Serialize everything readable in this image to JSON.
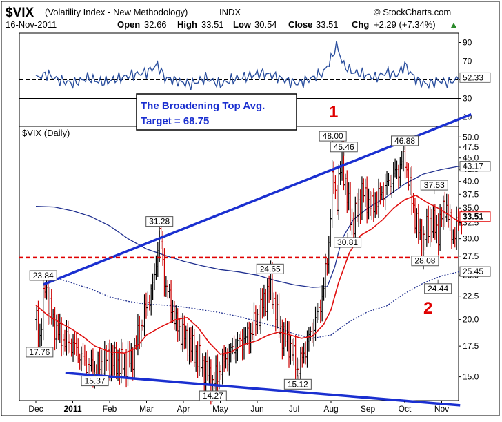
{
  "header": {
    "symbol": "$VIX",
    "description": "(Volatility Index - New Methodology)",
    "exchange": "INDX",
    "watermark": "© StockCharts.com",
    "date": "16-Nov-2011",
    "open_label": "Open",
    "open": "32.66",
    "high_label": "High",
    "high": "33.51",
    "low_label": "Low",
    "low": "30.54",
    "close_label": "Close",
    "close": "33.51",
    "chg_label": "Chg",
    "chg": "+2.29 (+7.34%)"
  },
  "rsi": {
    "ticks": [
      90,
      70,
      50,
      30,
      10
    ],
    "overbought": 70,
    "oversold": 30,
    "last_label": "52.33"
  },
  "price_panel": {
    "label": "$VIX (Daily)",
    "ticks": [
      "50.0",
      "47.5",
      "45.0",
      "42.5",
      "40.0",
      "37.5",
      "35.0",
      "32.5",
      "30.0",
      "27.5",
      "25.0",
      "22.5",
      "20.0",
      "17.5",
      "15.0"
    ],
    "upper_band_label": "43.17",
    "close_label": "33.51",
    "lower_band_label": "25.45"
  },
  "x_axis": {
    "months": [
      {
        "label": "Dec",
        "bold": false
      },
      {
        "label": "2011",
        "bold": true
      },
      {
        "label": "Feb",
        "bold": false
      },
      {
        "label": "Mar",
        "bold": false
      },
      {
        "label": "Apr",
        "bold": false
      },
      {
        "label": "May",
        "bold": false
      },
      {
        "label": "Jun",
        "bold": false
      },
      {
        "label": "Jul",
        "bold": false
      },
      {
        "label": "Aug",
        "bold": false
      },
      {
        "label": "Sep",
        "bold": false
      },
      {
        "label": "Oct",
        "bold": false
      },
      {
        "label": "Nov",
        "bold": false
      }
    ]
  },
  "annotations": {
    "target_box_line1": "The Broadening Top Avg.",
    "target_box_line2": "Target = 68.75",
    "wave_1": "1",
    "wave_2": "2",
    "target_level": 27.3
  },
  "chart_data": {
    "type": "ohlc",
    "scale": "log",
    "ylim": [
      13.5,
      52
    ],
    "rsi_ylim": [
      0,
      100
    ],
    "price_points": [
      {
        "m": 0.0,
        "v": 20
      },
      {
        "m": 0.1,
        "v": 17.8
      },
      {
        "m": 0.25,
        "v": 23.8
      },
      {
        "m": 0.45,
        "v": 19.8
      },
      {
        "m": 0.7,
        "v": 18.2
      },
      {
        "m": 1.0,
        "v": 17.6
      },
      {
        "m": 1.3,
        "v": 16.2
      },
      {
        "m": 1.6,
        "v": 15.4
      },
      {
        "m": 1.9,
        "v": 16.5
      },
      {
        "m": 2.3,
        "v": 16.0
      },
      {
        "m": 2.6,
        "v": 16.3
      },
      {
        "m": 2.9,
        "v": 20.0
      },
      {
        "m": 3.2,
        "v": 24.0
      },
      {
        "m": 3.35,
        "v": 31.0
      },
      {
        "m": 3.5,
        "v": 24.0
      },
      {
        "m": 3.8,
        "v": 19.5
      },
      {
        "m": 4.2,
        "v": 17.5
      },
      {
        "m": 4.5,
        "v": 16.0
      },
      {
        "m": 4.8,
        "v": 14.5
      },
      {
        "m": 5.1,
        "v": 16.2
      },
      {
        "m": 5.4,
        "v": 17.5
      },
      {
        "m": 5.8,
        "v": 18.5
      },
      {
        "m": 6.2,
        "v": 22.0
      },
      {
        "m": 6.35,
        "v": 24.0
      },
      {
        "m": 6.6,
        "v": 19.0
      },
      {
        "m": 6.9,
        "v": 17.5
      },
      {
        "m": 7.1,
        "v": 15.5
      },
      {
        "m": 7.3,
        "v": 17.2
      },
      {
        "m": 7.6,
        "v": 20.0
      },
      {
        "m": 7.8,
        "v": 23.0
      },
      {
        "m": 7.95,
        "v": 30.0
      },
      {
        "m": 8.05,
        "v": 42.0
      },
      {
        "m": 8.15,
        "v": 36.0
      },
      {
        "m": 8.3,
        "v": 45.0
      },
      {
        "m": 8.45,
        "v": 36.0
      },
      {
        "m": 8.6,
        "v": 32.0
      },
      {
        "m": 8.85,
        "v": 38.0
      },
      {
        "m": 9.1,
        "v": 35.0
      },
      {
        "m": 9.4,
        "v": 38.0
      },
      {
        "m": 9.7,
        "v": 41.0
      },
      {
        "m": 10.0,
        "v": 45.0
      },
      {
        "m": 10.2,
        "v": 36.0
      },
      {
        "m": 10.45,
        "v": 29.0
      },
      {
        "m": 10.7,
        "v": 33.0
      },
      {
        "m": 10.9,
        "v": 31.0
      },
      {
        "m": 11.1,
        "v": 36.0
      },
      {
        "m": 11.3,
        "v": 30.0
      },
      {
        "m": 11.5,
        "v": 33.5
      }
    ],
    "ma20": [
      {
        "m": 0.0,
        "v": 21.5
      },
      {
        "m": 0.3,
        "v": 20.5
      },
      {
        "m": 0.6,
        "v": 19.8
      },
      {
        "m": 1.0,
        "v": 19.0
      },
      {
        "m": 1.3,
        "v": 18.3
      },
      {
        "m": 1.6,
        "v": 17.5
      },
      {
        "m": 2.0,
        "v": 17.0
      },
      {
        "m": 2.4,
        "v": 16.9
      },
      {
        "m": 2.7,
        "v": 17.3
      },
      {
        "m": 3.0,
        "v": 18.5
      },
      {
        "m": 3.4,
        "v": 19.3
      },
      {
        "m": 3.8,
        "v": 20.0
      },
      {
        "m": 4.1,
        "v": 20.2
      },
      {
        "m": 4.4,
        "v": 19.2
      },
      {
        "m": 4.7,
        "v": 17.8
      },
      {
        "m": 5.0,
        "v": 16.8
      },
      {
        "m": 5.3,
        "v": 17.0
      },
      {
        "m": 5.6,
        "v": 17.6
      },
      {
        "m": 6.0,
        "v": 18.0
      },
      {
        "m": 6.3,
        "v": 18.5
      },
      {
        "m": 6.6,
        "v": 18.8
      },
      {
        "m": 6.9,
        "v": 18.5
      },
      {
        "m": 7.2,
        "v": 18.2
      },
      {
        "m": 7.5,
        "v": 18.4
      },
      {
        "m": 7.8,
        "v": 19.5
      },
      {
        "m": 8.0,
        "v": 21.0
      },
      {
        "m": 8.2,
        "v": 24.0
      },
      {
        "m": 8.5,
        "v": 28.0
      },
      {
        "m": 8.8,
        "v": 30.5
      },
      {
        "m": 9.1,
        "v": 31.5
      },
      {
        "m": 9.4,
        "v": 33.0
      },
      {
        "m": 9.7,
        "v": 35.0
      },
      {
        "m": 10.0,
        "v": 36.5
      },
      {
        "m": 10.3,
        "v": 37.3
      },
      {
        "m": 10.6,
        "v": 36.0
      },
      {
        "m": 10.9,
        "v": 35.0
      },
      {
        "m": 11.2,
        "v": 33.8
      },
      {
        "m": 11.5,
        "v": 32.5
      }
    ],
    "bb_upper": [
      {
        "m": 0.0,
        "v": 35.3
      },
      {
        "m": 0.5,
        "v": 35.2
      },
      {
        "m": 1.0,
        "v": 34.5
      },
      {
        "m": 1.5,
        "v": 33.5
      },
      {
        "m": 2.0,
        "v": 32.0
      },
      {
        "m": 2.5,
        "v": 30.0
      },
      {
        "m": 3.0,
        "v": 28.5
      },
      {
        "m": 3.5,
        "v": 27.6
      },
      {
        "m": 4.0,
        "v": 26.8
      },
      {
        "m": 4.5,
        "v": 26.2
      },
      {
        "m": 5.0,
        "v": 25.7
      },
      {
        "m": 5.5,
        "v": 25.4
      },
      {
        "m": 6.0,
        "v": 25.0
      },
      {
        "m": 6.5,
        "v": 24.3
      },
      {
        "m": 7.0,
        "v": 23.8
      },
      {
        "m": 7.5,
        "v": 23.5
      },
      {
        "m": 7.9,
        "v": 23.6
      },
      {
        "m": 8.1,
        "v": 26.0
      },
      {
        "m": 8.3,
        "v": 30.0
      },
      {
        "m": 8.6,
        "v": 33.0
      },
      {
        "m": 9.0,
        "v": 35.0
      },
      {
        "m": 9.5,
        "v": 37.0
      },
      {
        "m": 10.0,
        "v": 39.5
      },
      {
        "m": 10.5,
        "v": 41.5
      },
      {
        "m": 11.0,
        "v": 42.5
      },
      {
        "m": 11.5,
        "v": 43.2
      }
    ],
    "bb_lower": [
      {
        "m": 0.0,
        "v": 25.0
      },
      {
        "m": 0.5,
        "v": 24.7
      },
      {
        "m": 1.0,
        "v": 24.0
      },
      {
        "m": 1.5,
        "v": 23.3
      },
      {
        "m": 2.0,
        "v": 22.4
      },
      {
        "m": 2.5,
        "v": 21.9
      },
      {
        "m": 3.0,
        "v": 21.6
      },
      {
        "m": 3.5,
        "v": 21.5
      },
      {
        "m": 4.0,
        "v": 21.3
      },
      {
        "m": 4.5,
        "v": 21.0
      },
      {
        "m": 5.0,
        "v": 20.7
      },
      {
        "m": 5.5,
        "v": 20.3
      },
      {
        "m": 6.0,
        "v": 19.8
      },
      {
        "m": 6.5,
        "v": 19.3
      },
      {
        "m": 7.0,
        "v": 18.6
      },
      {
        "m": 7.5,
        "v": 18.2
      },
      {
        "m": 8.0,
        "v": 18.5
      },
      {
        "m": 8.5,
        "v": 19.8
      },
      {
        "m": 9.0,
        "v": 20.8
      },
      {
        "m": 9.5,
        "v": 21.4
      },
      {
        "m": 10.0,
        "v": 22.8
      },
      {
        "m": 10.5,
        "v": 24.0
      },
      {
        "m": 11.0,
        "v": 24.9
      },
      {
        "m": 11.5,
        "v": 25.45
      }
    ],
    "rsi_points": [
      {
        "m": 0.0,
        "v": 52
      },
      {
        "m": 0.3,
        "v": 56
      },
      {
        "m": 0.6,
        "v": 50
      },
      {
        "m": 1.0,
        "v": 46
      },
      {
        "m": 1.4,
        "v": 52
      },
      {
        "m": 1.8,
        "v": 47
      },
      {
        "m": 2.2,
        "v": 51
      },
      {
        "m": 2.6,
        "v": 55
      },
      {
        "m": 3.0,
        "v": 58
      },
      {
        "m": 3.3,
        "v": 66
      },
      {
        "m": 3.5,
        "v": 52
      },
      {
        "m": 3.9,
        "v": 48
      },
      {
        "m": 4.2,
        "v": 45
      },
      {
        "m": 4.6,
        "v": 52
      },
      {
        "m": 5.0,
        "v": 45
      },
      {
        "m": 5.3,
        "v": 50
      },
      {
        "m": 5.7,
        "v": 53
      },
      {
        "m": 6.1,
        "v": 57
      },
      {
        "m": 6.4,
        "v": 55
      },
      {
        "m": 6.8,
        "v": 49
      },
      {
        "m": 7.1,
        "v": 46
      },
      {
        "m": 7.5,
        "v": 52
      },
      {
        "m": 7.8,
        "v": 58
      },
      {
        "m": 8.0,
        "v": 72
      },
      {
        "m": 8.15,
        "v": 87
      },
      {
        "m": 8.35,
        "v": 65
      },
      {
        "m": 8.6,
        "v": 58
      },
      {
        "m": 8.9,
        "v": 56
      },
      {
        "m": 9.2,
        "v": 52
      },
      {
        "m": 9.5,
        "v": 58
      },
      {
        "m": 9.8,
        "v": 55
      },
      {
        "m": 10.0,
        "v": 66
      },
      {
        "m": 10.3,
        "v": 50
      },
      {
        "m": 10.6,
        "v": 45
      },
      {
        "m": 10.9,
        "v": 49
      },
      {
        "m": 11.2,
        "v": 47
      },
      {
        "m": 11.5,
        "v": 52.3
      }
    ],
    "value_labels": [
      {
        "m": 0.1,
        "v": 17.76,
        "text": "17.76",
        "pos": "below"
      },
      {
        "m": 0.2,
        "v": 23.84,
        "text": "23.84",
        "pos": "above"
      },
      {
        "m": 1.6,
        "v": 15.37,
        "text": "15.37",
        "pos": "below"
      },
      {
        "m": 3.35,
        "v": 31.28,
        "text": "31.28",
        "pos": "above"
      },
      {
        "m": 4.8,
        "v": 14.27,
        "text": "14.27",
        "pos": "below"
      },
      {
        "m": 6.35,
        "v": 24.65,
        "text": "24.65",
        "pos": "above"
      },
      {
        "m": 7.1,
        "v": 15.12,
        "text": "15.12",
        "pos": "below"
      },
      {
        "m": 8.05,
        "v": 48.0,
        "text": "48.00",
        "pos": "above"
      },
      {
        "m": 8.35,
        "v": 45.46,
        "text": "45.46",
        "pos": "above"
      },
      {
        "m": 8.45,
        "v": 30.81,
        "text": "30.81",
        "pos": "below"
      },
      {
        "m": 10.0,
        "v": 46.88,
        "text": "46.88",
        "pos": "above"
      },
      {
        "m": 10.55,
        "v": 28.08,
        "text": "28.08",
        "pos": "below"
      },
      {
        "m": 10.8,
        "v": 37.53,
        "text": "37.53",
        "pos": "above"
      },
      {
        "m": 10.9,
        "v": 24.44,
        "text": "24.44",
        "pos": "below"
      }
    ],
    "upper_trendline": [
      {
        "m": 0.2,
        "v": 23.84
      },
      {
        "m": 11.8,
        "v": 56.0
      }
    ],
    "lower_trendline": [
      {
        "m": 0.8,
        "v": 15.3
      },
      {
        "m": 11.5,
        "v": 13.0
      }
    ]
  }
}
